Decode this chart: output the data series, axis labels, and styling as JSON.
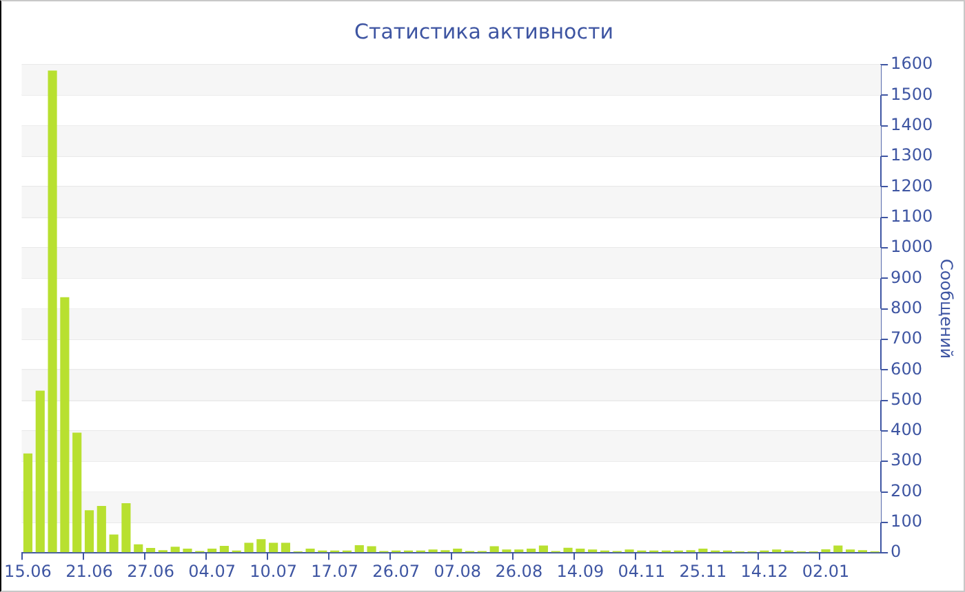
{
  "chart_data": {
    "type": "bar",
    "title": "Статистика активности",
    "ylabel": "Сообщений",
    "categories": [
      "15.06",
      null,
      null,
      null,
      null,
      "21.06",
      null,
      null,
      null,
      null,
      "27.06",
      null,
      null,
      null,
      null,
      "04.07",
      null,
      null,
      null,
      null,
      "10.07",
      null,
      null,
      null,
      null,
      "17.07",
      null,
      null,
      null,
      null,
      "26.07",
      null,
      null,
      null,
      null,
      "07.08",
      null,
      null,
      null,
      null,
      "26.08",
      null,
      null,
      null,
      null,
      "14.09",
      null,
      null,
      null,
      null,
      "04.11",
      null,
      null,
      null,
      null,
      "25.11",
      null,
      null,
      null,
      null,
      "14.12",
      null,
      null,
      null,
      null,
      "02.01",
      null,
      null,
      null,
      null
    ],
    "values": [
      326,
      532,
      1581,
      838,
      394,
      140,
      154,
      60,
      163,
      28,
      16,
      9,
      20,
      14,
      6,
      14,
      23,
      8,
      33,
      45,
      33,
      33,
      5,
      14,
      8,
      8,
      8,
      25,
      22,
      6,
      8,
      8,
      8,
      11,
      9,
      14,
      6,
      6,
      22,
      11,
      11,
      14,
      24,
      6,
      17,
      14,
      11,
      8,
      6,
      11,
      8,
      8,
      8,
      8,
      9,
      14,
      8,
      8,
      5,
      5,
      8,
      11,
      8,
      5,
      5,
      12,
      24,
      11,
      9,
      5
    ],
    "color": "#b8e030",
    "ylim": [
      0,
      1600
    ],
    "yticks": [
      0,
      100,
      200,
      300,
      400,
      500,
      600,
      700,
      800,
      900,
      1000,
      1100,
      1200,
      1300,
      1400,
      1500,
      1600
    ],
    "grid": true
  }
}
